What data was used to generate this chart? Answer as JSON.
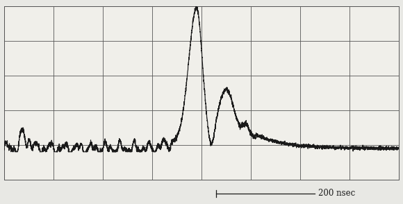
{
  "background_color": "#e8e8e4",
  "plot_bg_color": "#f0efea",
  "line_color": "#1a1a1a",
  "grid_color": "#555555",
  "grid_cols": 8,
  "grid_rows": 5,
  "xlim": [
    0,
    800
  ],
  "ylim": [
    0,
    100
  ],
  "baseline_y": 18,
  "main_peak_height": 75,
  "main_peak_x": 390,
  "sec_peak_height": 28,
  "sec_peak_x": 450,
  "scale_bar_label": "200 nsec",
  "noise_amplitude": 1.8,
  "noise_freq": 0.25,
  "seed": 17
}
